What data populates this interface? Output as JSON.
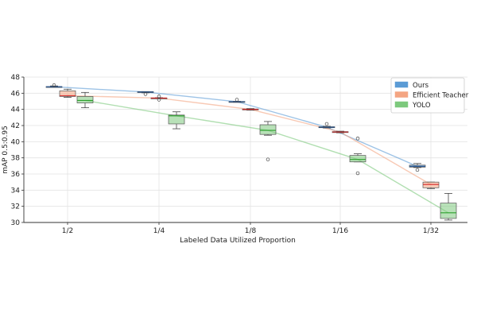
{
  "chart_data": {
    "type": "box",
    "xlabel": "Labeled Data Utilized Proportion",
    "ylabel": "mAP 0.5:0.95",
    "categories": [
      "1/2",
      "1/4",
      "1/8",
      "1/16",
      "1/32"
    ],
    "ylim": [
      30,
      48
    ],
    "yticks": [
      30,
      32,
      34,
      36,
      38,
      40,
      42,
      44,
      46,
      48
    ],
    "grid": true,
    "legend_position": "top-right",
    "series": [
      {
        "name": "Ours",
        "color": "#5b9bd5",
        "median_color": "#1f4e8c",
        "boxes": [
          {
            "whislo": 46.75,
            "q1": 46.78,
            "med": 46.8,
            "q3": 46.83,
            "whishi": 46.9,
            "fliers": [
              47.0
            ]
          },
          {
            "whislo": 46.05,
            "q1": 46.1,
            "med": 46.15,
            "q3": 46.2,
            "whishi": 46.2,
            "fliers": [
              45.9
            ]
          },
          {
            "whislo": 44.88,
            "q1": 44.9,
            "med": 44.95,
            "q3": 44.98,
            "whishi": 45.0,
            "fliers": [
              45.2
            ]
          },
          {
            "whislo": 41.7,
            "q1": 41.75,
            "med": 41.8,
            "q3": 41.85,
            "whishi": 41.9,
            "fliers": [
              42.2
            ]
          },
          {
            "whislo": 36.8,
            "q1": 36.85,
            "med": 36.95,
            "q3": 37.1,
            "whishi": 37.3,
            "fliers": [
              36.5
            ]
          }
        ],
        "trend": [
          46.8,
          46.15,
          44.95,
          41.8,
          36.95
        ]
      },
      {
        "name": "Efficient Teacher",
        "color": "#f4a582",
        "median_color": "#d62728",
        "boxes": [
          {
            "whislo": 45.5,
            "q1": 45.6,
            "med": 45.7,
            "q3": 46.3,
            "whishi": 46.5,
            "fliers": []
          },
          {
            "whislo": 45.35,
            "q1": 45.38,
            "med": 45.4,
            "q3": 45.42,
            "whishi": 45.45,
            "fliers": [
              45.2,
              45.6
            ]
          },
          {
            "whislo": 43.9,
            "q1": 43.95,
            "med": 44.0,
            "q3": 44.05,
            "whishi": 44.1,
            "fliers": []
          },
          {
            "whislo": 41.1,
            "q1": 41.15,
            "med": 41.2,
            "q3": 41.25,
            "whishi": 41.3,
            "fliers": []
          },
          {
            "whislo": 34.2,
            "q1": 34.3,
            "med": 34.7,
            "q3": 35.0,
            "whishi": 35.0,
            "fliers": []
          }
        ],
        "trend": [
          45.7,
          45.4,
          44.0,
          41.2,
          34.7
        ]
      },
      {
        "name": "YOLO",
        "color": "#7dc97d",
        "median_color": "#2ca02c",
        "boxes": [
          {
            "whislo": 44.2,
            "q1": 44.8,
            "med": 45.1,
            "q3": 45.6,
            "whishi": 46.1,
            "fliers": []
          },
          {
            "whislo": 41.6,
            "q1": 42.2,
            "med": 43.2,
            "q3": 43.3,
            "whishi": 43.7,
            "fliers": []
          },
          {
            "whislo": 40.8,
            "q1": 40.9,
            "med": 41.4,
            "q3": 42.1,
            "whishi": 42.5,
            "fliers": [
              37.8
            ]
          },
          {
            "whislo": 37.5,
            "q1": 37.5,
            "med": 37.8,
            "q3": 38.3,
            "whishi": 38.5,
            "fliers": [
              40.4,
              36.1
            ]
          },
          {
            "whislo": 30.3,
            "q1": 30.5,
            "med": 31.2,
            "q3": 32.4,
            "whishi": 33.6,
            "fliers": []
          }
        ],
        "trend": [
          45.1,
          43.2,
          41.4,
          37.8,
          31.2
        ]
      }
    ]
  }
}
